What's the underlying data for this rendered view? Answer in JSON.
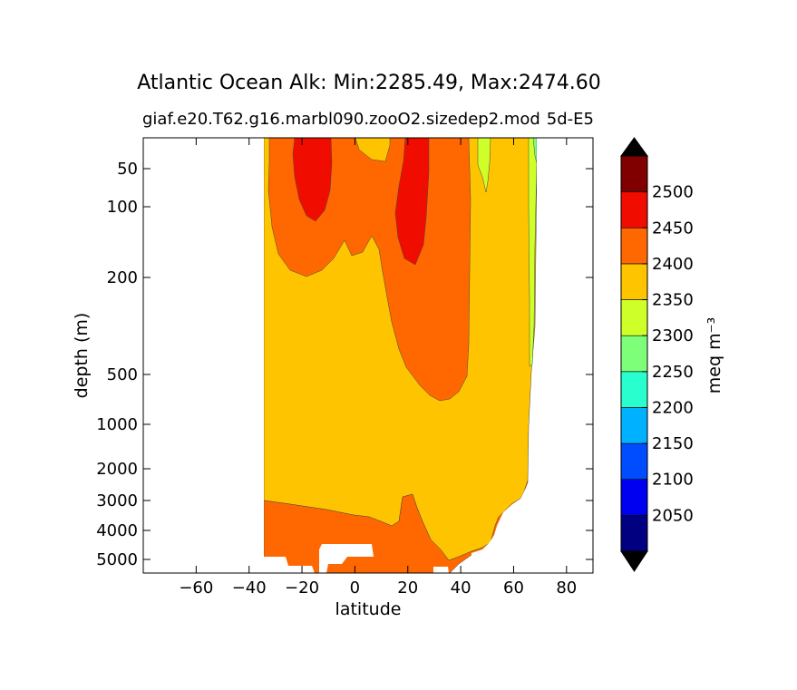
{
  "chart_data": {
    "type": "heatmap",
    "title": "Atlantic Ocean Alk: Min:2285.49, Max:2474.60",
    "subtitle_left": "giaf.e20.T62.g16.marbl090.zooO2.sizedep2.mod",
    "subtitle_right": "5d-E5",
    "xlabel": "latitude",
    "ylabel": "depth (m)",
    "xlim": [
      -80,
      90
    ],
    "y_scale": "log, inverted",
    "x_ticks": [
      "−60",
      "−40",
      "−20",
      "0",
      "20",
      "40",
      "60",
      "80"
    ],
    "y_ticks": [
      "50",
      "100",
      "200",
      "500",
      "1000",
      "2000",
      "3000",
      "4000",
      "5000"
    ],
    "colorbar": {
      "label": "meq m⁻³",
      "extend": "both",
      "levels": [
        2000,
        2050,
        2100,
        2150,
        2200,
        2250,
        2300,
        2350,
        2400,
        2450,
        2500,
        2550
      ],
      "tick_labels": [
        "2050",
        "2100",
        "2150",
        "2200",
        "2250",
        "2300",
        "2350",
        "2400",
        "2450",
        "2500"
      ],
      "colors": [
        "#000080",
        "#0000f1",
        "#004dff",
        "#00b1ff",
        "#29ffce",
        "#7dff7a",
        "#ceff29",
        "#ffc400",
        "#ff6800",
        "#f10c00",
        "#800000"
      ],
      "under_color": "#000080",
      "over_color": "#800000"
    },
    "regions": [
      {
        "band": "2300-2350",
        "color": "#ceff29",
        "description": "northern high latitudes"
      },
      {
        "band": "2350-2400",
        "color": "#ffc400",
        "description": "bulk of the water column"
      },
      {
        "band": "2400-2450",
        "color": "#ff6800",
        "description": "upper ocean subtropics and deep bottom water"
      },
      {
        "band": "2450-2500",
        "color": "#f10c00",
        "description": "subtropical near-surface cores near -20 and 20 latitude"
      }
    ]
  }
}
